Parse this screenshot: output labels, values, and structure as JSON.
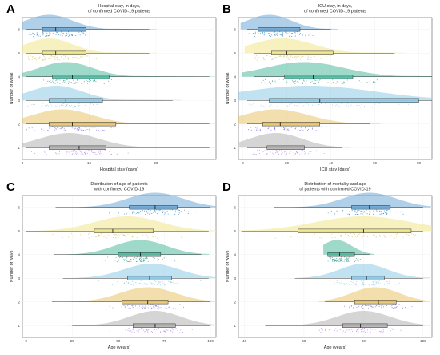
{
  "colors": {
    "1": "#b3b3b3",
    "2": "#e9c46a",
    "3": "#8ecae6",
    "4": "#4fb99f",
    "5": "#f1e68c",
    "6": "#6fa8d6",
    "points_1": "#b57edc",
    "points_2": "#7b68ee",
    "points_3": "#8ecae6",
    "points_4": "#2a9d8f",
    "points_5": "#d4c36a",
    "points_6": "#2e86c1"
  },
  "chart_data": [
    {
      "letter": "A",
      "type": "raincloud",
      "title": "Hospital stay, in days,\nof confirmed COVID-19 patients",
      "xlabel": "Hospital stay (days)",
      "ylabel": "Number of wave",
      "xlim": [
        0,
        29
      ],
      "xticks": [
        0,
        10,
        20
      ],
      "categories": [
        "1",
        "2",
        "3",
        "4",
        "5",
        "6"
      ],
      "series": [
        {
          "name": "1",
          "q1": 4,
          "median": 8.5,
          "q3": 12.5,
          "wmin": 0.5,
          "wmax": 28,
          "spread": 4.5,
          "peak": 7
        },
        {
          "name": "2",
          "q1": 4,
          "median": 7.5,
          "q3": 14,
          "wmin": 0.5,
          "wmax": 28,
          "spread": 4.5,
          "peak": 6
        },
        {
          "name": "3",
          "q1": 4,
          "median": 6.5,
          "q3": 12,
          "wmin": 0.5,
          "wmax": 22.5,
          "spread": 4,
          "peak": 5
        },
        {
          "name": "4",
          "q1": 4.5,
          "median": 7.5,
          "q3": 13,
          "wmin": 0.5,
          "wmax": 28,
          "spread": 4,
          "peak": 6.5
        },
        {
          "name": "5",
          "q1": 3,
          "median": 5,
          "q3": 9.5,
          "wmin": 0.5,
          "wmax": 19,
          "spread": 3.5,
          "peak": 4
        },
        {
          "name": "6",
          "q1": 3,
          "median": 5,
          "q3": 9.5,
          "wmin": 0.5,
          "wmax": 19,
          "spread": 3.5,
          "peak": 4
        }
      ]
    },
    {
      "letter": "B",
      "type": "raincloud",
      "title": "ICU stay, in days,\nof confirmed COVID-19 patients",
      "xlabel": "ICU stay (days)",
      "ylabel": "Number of wave",
      "xlim": [
        -2,
        86
      ],
      "xticks": [
        0,
        20,
        40,
        60,
        80
      ],
      "categories": [
        "1",
        "2",
        "3",
        "4",
        "5",
        "6"
      ],
      "series": [
        {
          "name": "1",
          "q1": 11,
          "median": 16,
          "q3": 28,
          "wmin": 2,
          "wmax": 45,
          "spread": 12,
          "peak": 15
        },
        {
          "name": "2",
          "q1": 9,
          "median": 17,
          "q3": 35,
          "wmin": 2,
          "wmax": 58,
          "spread": 15,
          "peak": 15
        },
        {
          "name": "3",
          "q1": 12,
          "median": 35,
          "q3": 80,
          "wmin": 2,
          "wmax": 86,
          "spread": 30,
          "peak": 30
        },
        {
          "name": "4",
          "q1": 19,
          "median": 32,
          "q3": 50,
          "wmin": 5,
          "wmax": 86,
          "spread": 18,
          "peak": 28
        },
        {
          "name": "5",
          "q1": 13,
          "median": 20,
          "q3": 41,
          "wmin": 5,
          "wmax": 69,
          "spread": 14,
          "peak": 18
        },
        {
          "name": "6",
          "q1": 7,
          "median": 16,
          "q3": 26,
          "wmin": 2,
          "wmax": 40,
          "spread": 10,
          "peak": 12
        }
      ]
    },
    {
      "letter": "C",
      "type": "raincloud",
      "title": "Distribution of age of patients\nwith confirmed COVID-19",
      "xlabel": "Age (years)",
      "ylabel": "Number of wave",
      "xlim": [
        -2,
        103
      ],
      "xticks": [
        0,
        25,
        50,
        75,
        100
      ],
      "categories": [
        "1",
        "2",
        "3",
        "4",
        "5",
        "6"
      ],
      "series": [
        {
          "name": "1",
          "q1": 58,
          "median": 70,
          "q3": 81,
          "wmin": 25,
          "wmax": 100,
          "spread": 14,
          "peak": 70
        },
        {
          "name": "2",
          "q1": 52,
          "median": 66,
          "q3": 77,
          "wmin": 14,
          "wmax": 100,
          "spread": 15,
          "peak": 66
        },
        {
          "name": "3",
          "q1": 55,
          "median": 67,
          "q3": 79,
          "wmin": 20,
          "wmax": 99,
          "spread": 15,
          "peak": 68
        },
        {
          "name": "4",
          "q1": 50,
          "median": 62,
          "q3": 73,
          "wmin": 15,
          "wmax": 95,
          "spread": 14,
          "peak": 62
        },
        {
          "name": "5",
          "q1": 37,
          "median": 47,
          "q3": 69,
          "wmin": 0,
          "wmax": 99,
          "spread": 18,
          "peak": 55
        },
        {
          "name": "6",
          "q1": 56,
          "median": 70,
          "q3": 82,
          "wmin": 16,
          "wmax": 100,
          "spread": 15,
          "peak": 70
        }
      ]
    },
    {
      "letter": "D",
      "type": "raincloud",
      "title": "Distribution of mortality and age\nof patients with confirmed COVID-19",
      "xlabel": "Age (years)",
      "ylabel": "Number of wave",
      "xlim": [
        38,
        103
      ],
      "xticks": [
        40,
        60,
        80,
        100
      ],
      "categories": [
        "1",
        "2",
        "3",
        "4",
        "5",
        "6"
      ],
      "series": [
        {
          "name": "1",
          "q1": 73,
          "median": 79,
          "q3": 88,
          "wmin": 47,
          "wmax": 100,
          "spread": 9,
          "peak": 80
        },
        {
          "name": "2",
          "q1": 77,
          "median": 85,
          "q3": 91,
          "wmin": 67,
          "wmax": 100,
          "spread": 8,
          "peak": 84
        },
        {
          "name": "3",
          "q1": 76,
          "median": 81,
          "q3": 87,
          "wmin": 57,
          "wmax": 100,
          "spread": 8,
          "peak": 80
        },
        {
          "name": "4",
          "q1": 68,
          "median": 72,
          "q3": 77,
          "wmin": 68,
          "wmax": 82,
          "spread": 5,
          "peak": 71
        },
        {
          "name": "5",
          "q1": 58,
          "median": 80,
          "q3": 96,
          "wmin": 39,
          "wmax": 100,
          "spread": 16,
          "peak": 80
        },
        {
          "name": "6",
          "q1": 76,
          "median": 82,
          "q3": 89,
          "wmin": 50,
          "wmax": 100,
          "spread": 9,
          "peak": 82
        }
      ]
    }
  ]
}
